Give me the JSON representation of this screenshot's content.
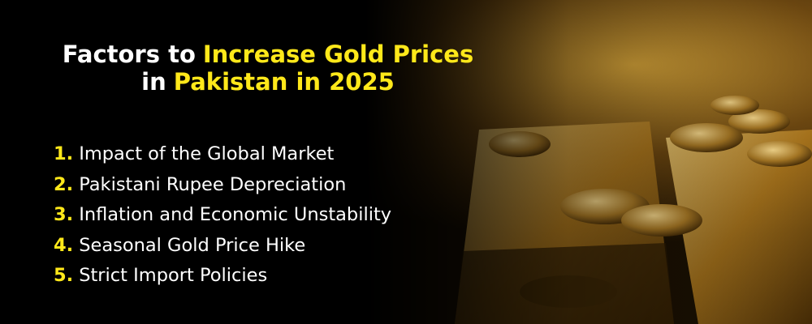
{
  "title": {
    "line1": [
      "Factors to",
      "Increase Gold Prices"
    ],
    "line2": [
      "in",
      "Pakistan in 2025"
    ]
  },
  "items": [
    {
      "number": "1.",
      "text": "Impact of the Global Market"
    },
    {
      "number": "2.",
      "text": "Pakistani Rupee Depreciation"
    },
    {
      "number": "3.",
      "text": "Inflation and Economic Unstability"
    },
    {
      "number": "4.",
      "text": "Seasonal Gold Price Hike"
    },
    {
      "number": "5.",
      "text": "Strict Import Policies"
    }
  ]
}
